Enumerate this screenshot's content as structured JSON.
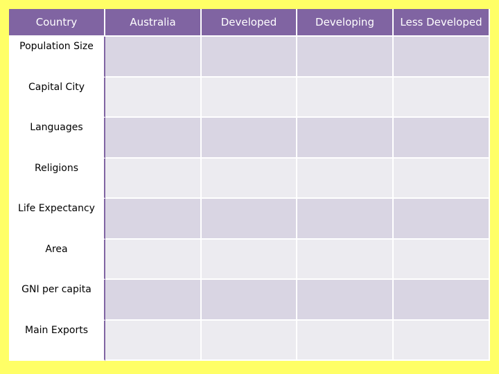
{
  "table": {
    "headers": [
      "Country",
      "Australia",
      "Developed",
      "Developing",
      "Less Developed"
    ],
    "rows": [
      {
        "label": "Population Size",
        "cells": [
          "",
          "",
          "",
          ""
        ]
      },
      {
        "label": "Capital City",
        "cells": [
          "",
          "",
          "",
          ""
        ]
      },
      {
        "label": "Languages",
        "cells": [
          "",
          "",
          "",
          ""
        ]
      },
      {
        "label": "Religions",
        "cells": [
          "",
          "",
          "",
          ""
        ]
      },
      {
        "label": "Life Expectancy",
        "cells": [
          "",
          "",
          "",
          ""
        ]
      },
      {
        "label": "Area",
        "cells": [
          "",
          "",
          "",
          ""
        ]
      },
      {
        "label": "GNI per capita",
        "cells": [
          "",
          "",
          "",
          ""
        ]
      },
      {
        "label": "Main Exports",
        "cells": [
          "",
          "",
          "",
          ""
        ]
      }
    ]
  },
  "colors": {
    "background": "#ffff66",
    "header": "#8064a2",
    "row_odd": "#d9d5e3",
    "row_even": "#ecebf0"
  }
}
